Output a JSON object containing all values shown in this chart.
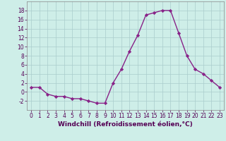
{
  "x": [
    0,
    1,
    2,
    3,
    4,
    5,
    6,
    7,
    8,
    9,
    10,
    11,
    12,
    13,
    14,
    15,
    16,
    17,
    18,
    19,
    20,
    21,
    22,
    23
  ],
  "y": [
    1,
    1,
    -0.5,
    -1,
    -1,
    -1.5,
    -1.5,
    -2,
    -2.5,
    -2.5,
    2,
    5,
    9,
    12.5,
    17,
    17.5,
    18,
    18,
    13,
    8,
    5,
    4,
    2.5,
    1
  ],
  "line_color": "#882288",
  "marker": "D",
  "marker_size": 2.2,
  "bg_color": "#ceeee8",
  "grid_color": "#aacccc",
  "xlabel": "Windchill (Refroidissement éolien,°C)",
  "xlabel_fontsize": 6.5,
  "ylim": [
    -4,
    20
  ],
  "yticks": [
    -2,
    0,
    2,
    4,
    6,
    8,
    10,
    12,
    14,
    16,
    18
  ],
  "xticks": [
    0,
    1,
    2,
    3,
    4,
    5,
    6,
    7,
    8,
    9,
    10,
    11,
    12,
    13,
    14,
    15,
    16,
    17,
    18,
    19,
    20,
    21,
    22,
    23
  ],
  "tick_fontsize": 5.5,
  "line_width": 1.0
}
